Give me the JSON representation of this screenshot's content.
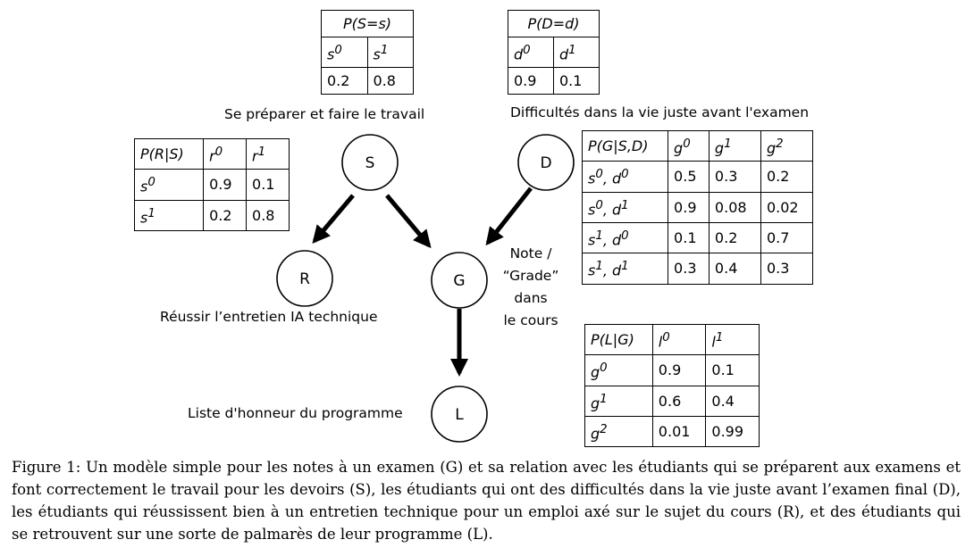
{
  "nodes": {
    "S": {
      "label": "S",
      "description": "Se préparer et faire le travail"
    },
    "D": {
      "label": "D",
      "description": "Difficultés dans la vie juste avant l'examen"
    },
    "R": {
      "label": "R",
      "description": "Réussir l’entretien IA technique"
    },
    "G": {
      "label": "G",
      "description_lines": [
        "Note /",
        "“Grade”",
        "dans",
        "le cours"
      ]
    },
    "L": {
      "label": "L",
      "description": "Liste d'honneur du programme"
    }
  },
  "tables": {
    "ps": {
      "header": "P(S=s)",
      "cols": [
        "s",
        "s"
      ],
      "col_sups": [
        "0",
        "1"
      ],
      "values": [
        "0.2",
        "0.8"
      ]
    },
    "pd": {
      "header": "P(D=d)",
      "cols": [
        "d",
        "d"
      ],
      "col_sups": [
        "0",
        "1"
      ],
      "values": [
        "0.9",
        "0.1"
      ]
    },
    "pr": {
      "header": "P(R|S)",
      "col_heads": [
        "r",
        "r"
      ],
      "col_sups": [
        "0",
        "1"
      ],
      "rows": [
        {
          "head": "s",
          "sup": "0",
          "values": [
            "0.9",
            "0.1"
          ]
        },
        {
          "head": "s",
          "sup": "1",
          "values": [
            "0.2",
            "0.8"
          ]
        }
      ]
    },
    "pg": {
      "header": "P(G|S,D)",
      "col_heads": [
        "g",
        "g",
        "g"
      ],
      "col_sups": [
        "0",
        "1",
        "2"
      ],
      "rows": [
        {
          "s_sup": "0",
          "d_sup": "0",
          "values": [
            "0.5",
            "0.3",
            "0.2"
          ]
        },
        {
          "s_sup": "0",
          "d_sup": "1",
          "values": [
            "0.9",
            "0.08",
            "0.02"
          ]
        },
        {
          "s_sup": "1",
          "d_sup": "0",
          "values": [
            "0.1",
            "0.2",
            "0.7"
          ]
        },
        {
          "s_sup": "1",
          "d_sup": "1",
          "values": [
            "0.3",
            "0.4",
            "0.3"
          ]
        }
      ]
    },
    "pl": {
      "header": "P(L|G)",
      "col_heads": [
        "l",
        "l"
      ],
      "col_sups": [
        "0",
        "1"
      ],
      "rows": [
        {
          "head": "g",
          "sup": "0",
          "values": [
            "0.9",
            "0.1"
          ]
        },
        {
          "head": "g",
          "sup": "1",
          "values": [
            "0.6",
            "0.4"
          ]
        },
        {
          "head": "g",
          "sup": "2",
          "values": [
            "0.01",
            "0.99"
          ]
        }
      ]
    }
  },
  "caption": "Figure 1: Un modèle simple pour les notes à un examen (G) et sa relation avec les étudiants qui se préparent aux examens et font correctement le travail pour les devoirs (S), les étudiants qui ont des difficultés dans la vie juste avant l’examen final (D), les étudiants qui réussissent bien à un entretien technique pour un emploi axé sur le sujet du cours (R), et des étudiants qui se retrouvent sur une sorte de palmarès de leur programme (L)."
}
